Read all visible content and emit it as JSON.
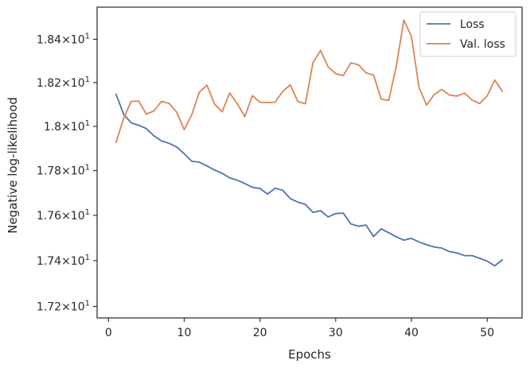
{
  "chart_data": {
    "type": "line",
    "title": "",
    "xlabel": "Epochs",
    "ylabel": "Negative log-likelihood",
    "xlim": [
      -1.5,
      54.6
    ],
    "ylim": [
      17.15,
      18.55
    ],
    "yscale": "log",
    "grid": false,
    "legend_position": "top-right",
    "x_ticks": [
      0,
      10,
      20,
      30,
      40,
      50
    ],
    "x_tick_labels": [
      "0",
      "10",
      "20",
      "30",
      "40",
      "50"
    ],
    "y_ticks": [
      17.2,
      17.4,
      17.6,
      17.8,
      18.0,
      18.2,
      18.4
    ],
    "y_tick_labels": [
      {
        "base": "1.72",
        "exp": "1"
      },
      {
        "base": "1.74",
        "exp": "1"
      },
      {
        "base": "1.76",
        "exp": "1"
      },
      {
        "base": "1.78",
        "exp": "1"
      },
      {
        "base": "1.8",
        "exp": "1"
      },
      {
        "base": "1.82",
        "exp": "1"
      },
      {
        "base": "1.84",
        "exp": "1"
      }
    ],
    "x": [
      1,
      2,
      3,
      4,
      5,
      6,
      7,
      8,
      9,
      10,
      11,
      12,
      13,
      14,
      15,
      16,
      17,
      18,
      19,
      20,
      21,
      22,
      23,
      24,
      25,
      26,
      27,
      28,
      29,
      30,
      31,
      32,
      33,
      34,
      35,
      36,
      37,
      38,
      39,
      40,
      41,
      42,
      43,
      44,
      45,
      46,
      47,
      48,
      49,
      50,
      51,
      52
    ],
    "series": [
      {
        "name": "Loss",
        "color": "#4c72b0",
        "values": [
          18.147,
          18.055,
          18.016,
          18.005,
          17.99,
          17.957,
          17.934,
          17.923,
          17.907,
          17.876,
          17.842,
          17.838,
          17.821,
          17.803,
          17.788,
          17.768,
          17.757,
          17.742,
          17.725,
          17.72,
          17.695,
          17.721,
          17.712,
          17.675,
          17.659,
          17.649,
          17.613,
          17.621,
          17.593,
          17.608,
          17.61,
          17.562,
          17.552,
          17.557,
          17.506,
          17.54,
          17.523,
          17.505,
          17.49,
          17.498,
          17.482,
          17.47,
          17.46,
          17.455,
          17.44,
          17.434,
          17.422,
          17.422,
          17.41,
          17.398,
          17.377,
          17.404
        ]
      },
      {
        "name": "Val. loss",
        "color": "#dd8452",
        "values": [
          17.927,
          18.036,
          18.114,
          18.115,
          18.056,
          18.07,
          18.114,
          18.105,
          18.065,
          17.985,
          18.053,
          18.156,
          18.188,
          18.102,
          18.066,
          18.152,
          18.104,
          18.044,
          18.14,
          18.11,
          18.108,
          18.11,
          18.159,
          18.19,
          18.113,
          18.103,
          18.292,
          18.348,
          18.272,
          18.241,
          18.232,
          18.291,
          18.282,
          18.245,
          18.235,
          18.125,
          18.118,
          18.276,
          18.49,
          18.413,
          18.178,
          18.097,
          18.145,
          18.169,
          18.143,
          18.138,
          18.152,
          18.12,
          18.104,
          18.139,
          18.212,
          18.16
        ]
      }
    ]
  }
}
